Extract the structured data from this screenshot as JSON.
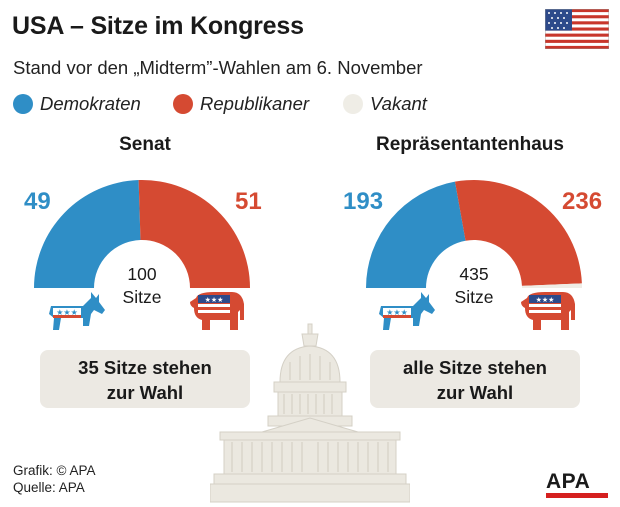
{
  "title": "USA – Sitze im Kongress",
  "subtitle": "Stand vor den „Midterm”-Wahlen am 6. November",
  "legend": [
    {
      "label": "Demokraten",
      "color": "#2f8ec6"
    },
    {
      "label": "Republikaner",
      "color": "#d54a32"
    },
    {
      "label": "Vakant",
      "color": "#efede6"
    }
  ],
  "colors": {
    "dem": "#2f8ec6",
    "rep": "#d54a32",
    "vacant": "#efede6",
    "box": "#ece9e3",
    "capitol": "#e9e6de"
  },
  "icons": {
    "flag": "us-flag-icon",
    "dem": "donkey-icon",
    "rep": "elephant-icon",
    "building": "capitol-icon",
    "logo": "apa-logo-icon"
  },
  "chart_data": [
    {
      "type": "pie",
      "title": "Senat",
      "categories": [
        "Demokraten",
        "Republikaner",
        "Vakant"
      ],
      "values": [
        49,
        51,
        0
      ],
      "total": 100,
      "center_number": "100",
      "center_unit": "Sitze",
      "left_label": "49",
      "right_label": "51",
      "note_line1": "35 Sitze stehen",
      "note_line2": "zur Wahl"
    },
    {
      "type": "pie",
      "title": "Repräsentantenhaus",
      "categories": [
        "Demokraten",
        "Republikaner",
        "Vakant"
      ],
      "values": [
        193,
        236,
        6
      ],
      "total": 435,
      "center_number": "435",
      "center_unit": "Sitze",
      "left_label": "193",
      "right_label": "236",
      "note_line1": "alle Sitze stehen",
      "note_line2": "zur Wahl"
    }
  ],
  "footer": {
    "line1": "Grafik: © APA",
    "line2": "Quelle: APA"
  },
  "logo_text": "APA"
}
